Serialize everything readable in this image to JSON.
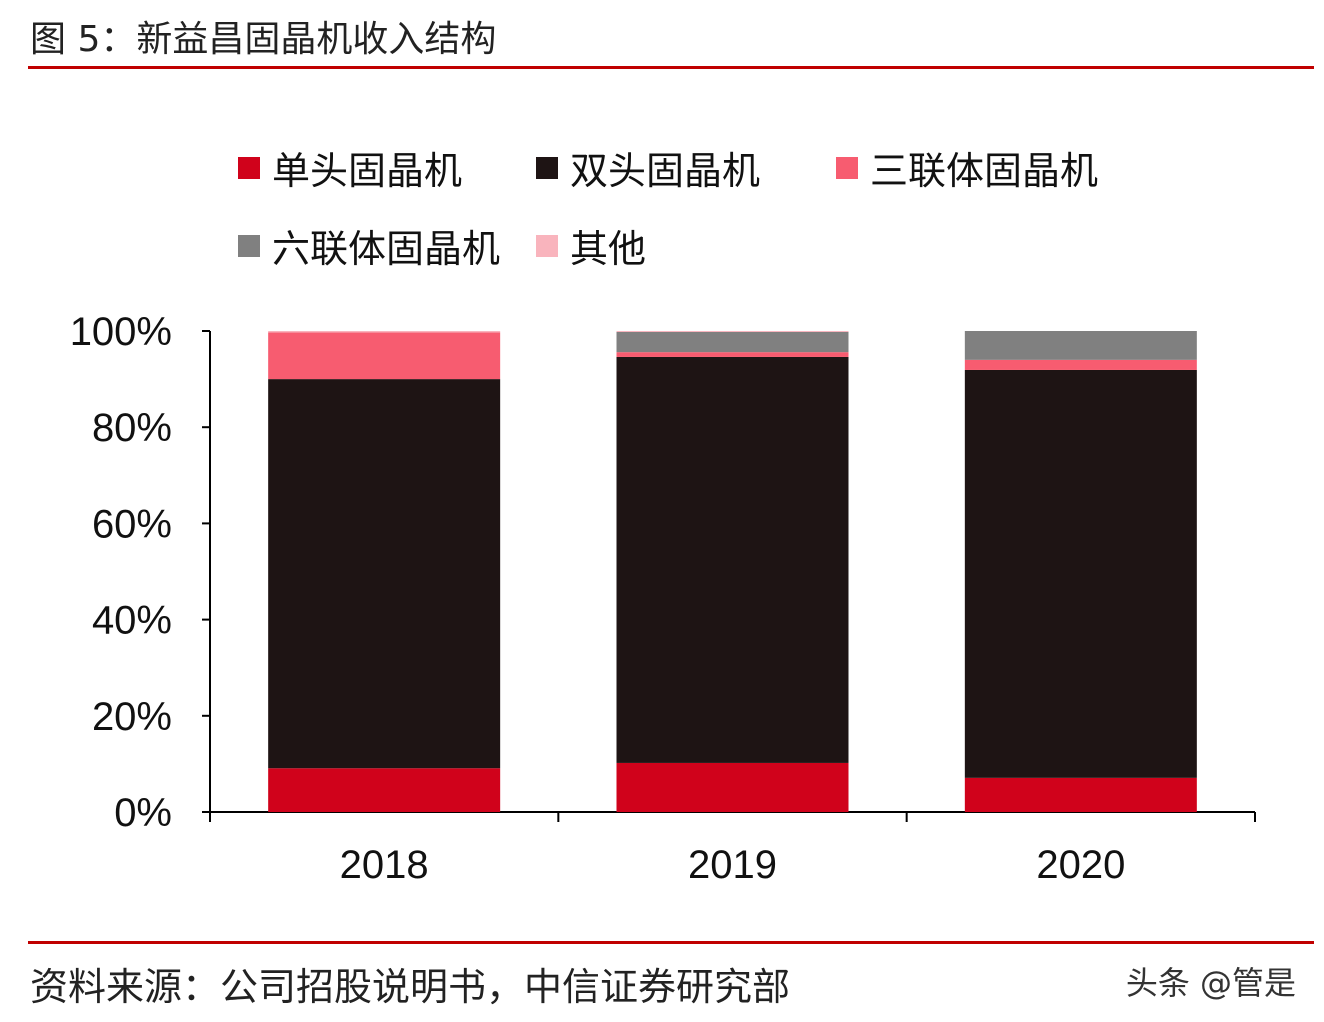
{
  "title": "图 5：新益昌固晶机收入结构",
  "source": "资料来源：公司招股说明书，中信证券研究部",
  "watermark": "头条 @管是",
  "chart_data": {
    "type": "bar",
    "stacked": true,
    "categories": [
      "2018",
      "2019",
      "2020"
    ],
    "series": [
      {
        "name": "单头固晶机",
        "color": "#d0021b",
        "values": [
          9.1,
          10.2,
          7.1
        ]
      },
      {
        "name": "双头固晶机",
        "color": "#1e1414",
        "values": [
          80.9,
          84.4,
          84.8
        ]
      },
      {
        "name": "三联体固晶机",
        "color": "#f75c70",
        "values": [
          9.7,
          1.0,
          2.1
        ]
      },
      {
        "name": "六联体固晶机",
        "color": "#808080",
        "values": [
          0,
          4.2,
          6.0
        ]
      },
      {
        "name": "其他",
        "color": "#f9b4bd",
        "values": [
          0.3,
          0.2,
          0
        ]
      }
    ],
    "yticks": [
      "0%",
      "20%",
      "40%",
      "60%",
      "80%",
      "100%"
    ],
    "ylim": [
      0,
      100
    ],
    "legend": "top",
    "grid": false
  }
}
